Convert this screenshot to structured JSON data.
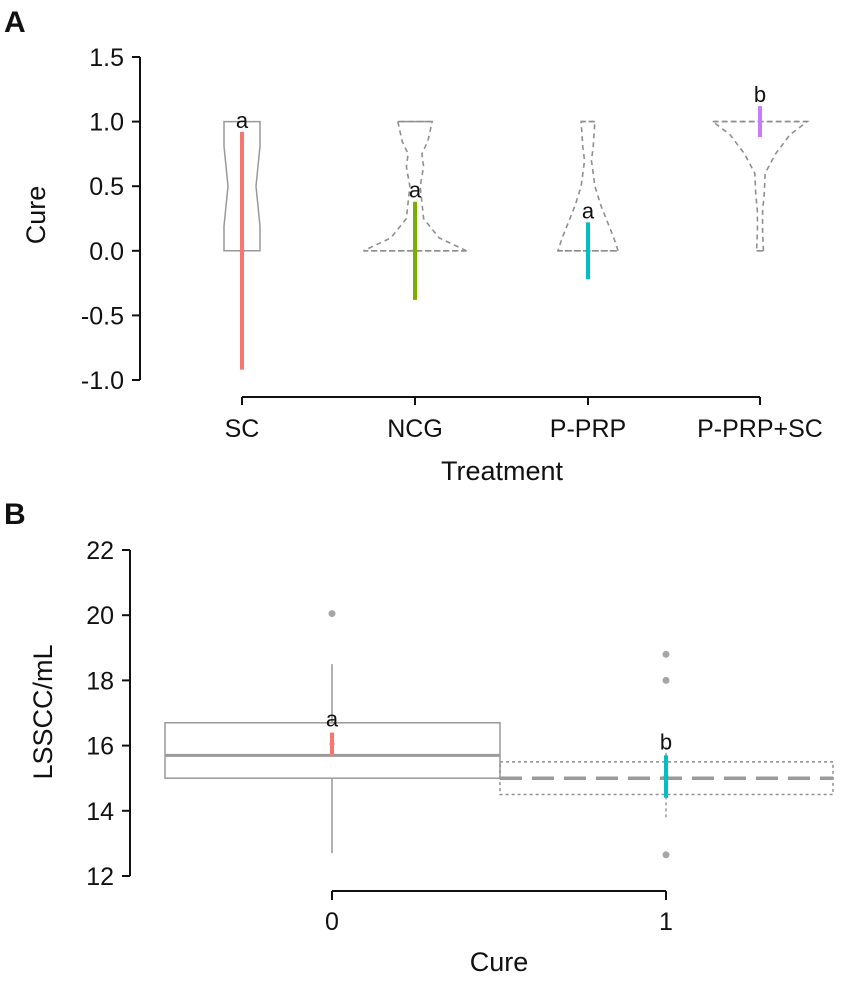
{
  "chart_data": [
    {
      "panel": "A",
      "type": "violin",
      "xlabel": "Treatment",
      "ylabel": "Cure",
      "ylim": [
        -1.0,
        1.5
      ],
      "yticks": [
        -1.0,
        -0.5,
        0.0,
        0.5,
        1.0,
        1.5
      ],
      "ytick_labels": [
        "-1.0",
        "-0.5",
        "0.0",
        "0.5",
        "1.0",
        "1.5"
      ],
      "categories": [
        "SC",
        "NCG",
        "P-PRP",
        "P-PRP+SC"
      ],
      "groups": [
        {
          "name": "SC",
          "color": "#f8766d",
          "shape": "box",
          "box": [
            0.0,
            1.0
          ],
          "ci": [
            -0.92,
            0.92
          ],
          "mean": 0.0,
          "letter": "a"
        },
        {
          "name": "NCG",
          "color": "#7cae00",
          "shape": "violin",
          "density": [
            [
              0.0,
              0.6
            ],
            [
              0.1,
              0.28
            ],
            [
              0.25,
              0.1
            ],
            [
              0.5,
              0.06
            ],
            [
              0.65,
              0.1
            ],
            [
              0.75,
              0.08
            ],
            [
              0.85,
              0.15
            ],
            [
              1.0,
              0.2
            ]
          ],
          "ci": [
            -0.38,
            0.38
          ],
          "mean": 0.0,
          "letter": "a"
        },
        {
          "name": "P-PRP",
          "color": "#00bfc4",
          "shape": "violin",
          "density": [
            [
              0.0,
              0.35
            ],
            [
              0.1,
              0.3
            ],
            [
              0.2,
              0.24
            ],
            [
              0.35,
              0.15
            ],
            [
              0.5,
              0.08
            ],
            [
              0.7,
              0.04
            ],
            [
              0.8,
              0.06
            ],
            [
              1.0,
              0.08
            ]
          ],
          "ci": [
            -0.22,
            0.22
          ],
          "mean": 0.0,
          "letter": "a"
        },
        {
          "name": "P-PRP+SC",
          "color": "#c77cff",
          "shape": "violin",
          "density": [
            [
              0.0,
              0.04
            ],
            [
              0.15,
              0.03
            ],
            [
              0.3,
              0.03
            ],
            [
              0.45,
              0.05
            ],
            [
              0.6,
              0.06
            ],
            [
              0.75,
              0.18
            ],
            [
              0.9,
              0.35
            ],
            [
              1.0,
              0.55
            ]
          ],
          "ci": [
            0.88,
            1.12
          ],
          "mean": 1.0,
          "letter": "b"
        }
      ]
    },
    {
      "panel": "B",
      "type": "box",
      "xlabel": "Cure",
      "ylabel": "LSSCC/mL",
      "ylim": [
        12,
        22
      ],
      "yticks": [
        12,
        14,
        16,
        18,
        20,
        22
      ],
      "ytick_labels": [
        "12",
        "14",
        "16",
        "18",
        "20",
        "22"
      ],
      "categories": [
        "0",
        "1"
      ],
      "groups": [
        {
          "name": "0",
          "color": "#f8766d",
          "q1": 15.0,
          "median": 15.7,
          "q3": 16.7,
          "whisker_low": 12.7,
          "whisker_high": 18.5,
          "outliers": [
            20.05
          ],
          "ci": [
            15.7,
            16.4
          ],
          "mean": 16.05,
          "letter": "a"
        },
        {
          "name": "1",
          "color": "#00bfc4",
          "q1": 14.5,
          "median": 15.0,
          "q3": 15.5,
          "whisker_low": 13.8,
          "whisker_high": 16.0,
          "outliers": [
            12.65,
            18.0,
            18.8
          ],
          "ci": [
            14.4,
            15.7
          ],
          "mean": 15.05,
          "letter": "b"
        }
      ]
    }
  ]
}
